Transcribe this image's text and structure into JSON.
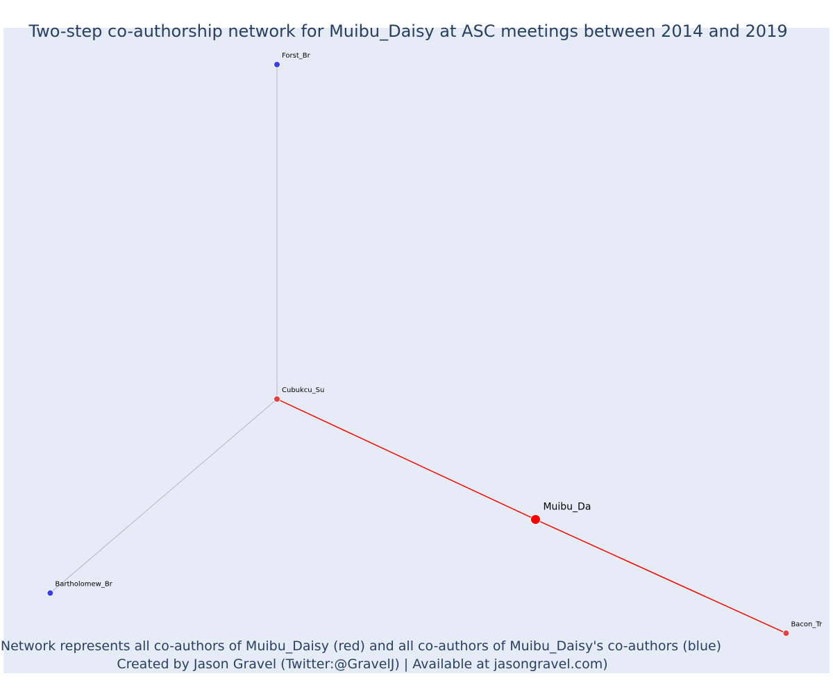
{
  "title": "Two-step co-authorship network for Muibu_Daisy at ASC meetings between 2014 and 2019",
  "caption": {
    "line1": "Network represents all co-authors of Muibu_Daisy (red) and all co-authors of Muibu_Daisy's co-authors (blue)",
    "line2": "Created by Jason Gravel (Twitter:@GravelJ) | Available at jasongravel.com)"
  },
  "colors": {
    "plot_bg": "#e5ecf6",
    "primary": "#ff0000",
    "coauthor": "#f03c3c",
    "second_step": "#3c3cf0",
    "edge_primary": "#ff0000",
    "edge_secondary": "#b4b4c8"
  },
  "chart_data": {
    "type": "network",
    "nodes": [
      {
        "id": "Forst_Br",
        "label": "Forst_Br",
        "group": "second_step",
        "x": 0.0,
        "y": 1.0
      },
      {
        "id": "Cubukcu_Su",
        "label": "Cubukcu_Su",
        "group": "coauthor",
        "x": 0.0,
        "y": 0.0
      },
      {
        "id": "Bartholomew_Br",
        "label": "Bartholomew_Br",
        "group": "second_step",
        "x": -0.57,
        "y": -0.58
      },
      {
        "id": "Muibu_Da",
        "label": "Muibu_Da",
        "group": "primary",
        "x": 0.65,
        "y": -0.36
      },
      {
        "id": "Bacon_Tr",
        "label": "Bacon_Tr",
        "group": "coauthor",
        "x": 1.28,
        "y": -0.7
      }
    ],
    "edges": [
      {
        "source": "Cubukcu_Su",
        "target": "Forst_Br",
        "type": "secondary"
      },
      {
        "source": "Cubukcu_Su",
        "target": "Bartholomew_Br",
        "type": "secondary"
      },
      {
        "source": "Cubukcu_Su",
        "target": "Muibu_Da",
        "type": "primary"
      },
      {
        "source": "Muibu_Da",
        "target": "Bacon_Tr",
        "type": "primary"
      }
    ],
    "grid": false,
    "axes_visible": false
  }
}
